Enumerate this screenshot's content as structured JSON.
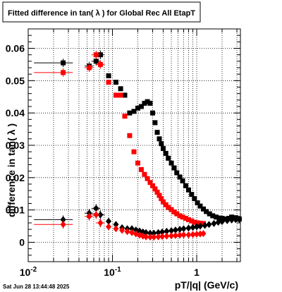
{
  "chart_data": {
    "type": "scatter",
    "title": "Fitted difference in tan( λ ) for Global Rec All EtapT",
    "xlabel": "pT/|q| (GeV/c)",
    "ylabel": "difference in tan( λ )",
    "xscale": "log",
    "xlim": [
      0.01,
      3.3
    ],
    "ylim": [
      -0.006,
      0.066
    ],
    "grid": true,
    "legend": "none",
    "timestamp": "Sat Jun 28 13:44:48 2025",
    "x_ticks": [
      {
        "value": 0.01,
        "base": "10",
        "exp": "-2"
      },
      {
        "value": 0.1,
        "base": "10",
        "exp": "-1"
      },
      {
        "value": 1,
        "base": "1",
        "exp": ""
      }
    ],
    "y_ticks": [
      {
        "value": 0,
        "label": "0"
      },
      {
        "value": 0.01,
        "label": "0.01"
      },
      {
        "value": 0.02,
        "label": "0.02"
      },
      {
        "value": 0.03,
        "label": "0.03"
      },
      {
        "value": 0.04,
        "label": "0.04"
      },
      {
        "value": 0.05,
        "label": "0.05"
      },
      {
        "value": 0.06,
        "label": "0.06"
      }
    ],
    "colors": {
      "black": "#000000",
      "red": "#ff0000"
    },
    "series": [
      {
        "color": "#000000",
        "marker": "square",
        "x": [
          0.026,
          0.053,
          0.064,
          0.072,
          0.09,
          0.11,
          0.125,
          0.14,
          0.16,
          0.18,
          0.2,
          0.22,
          0.24,
          0.26,
          0.28,
          0.3,
          0.32,
          0.34,
          0.36,
          0.38,
          0.4,
          0.43,
          0.46,
          0.5,
          0.54,
          0.58,
          0.63,
          0.68,
          0.74,
          0.8,
          0.87,
          0.94,
          1.02,
          1.1,
          1.2,
          1.3,
          1.42,
          1.55,
          1.7,
          1.85,
          2.0,
          2.2,
          2.4,
          2.6,
          2.9,
          3.2
        ],
        "y": [
          0.0555,
          0.0545,
          0.056,
          0.058,
          0.0515,
          0.0495,
          0.0475,
          0.0455,
          0.04,
          0.0405,
          0.0415,
          0.042,
          0.043,
          0.0435,
          0.043,
          0.04,
          0.037,
          0.034,
          0.032,
          0.0305,
          0.029,
          0.0275,
          0.026,
          0.0245,
          0.023,
          0.0215,
          0.0202,
          0.019,
          0.0175,
          0.0162,
          0.0148,
          0.0135,
          0.0122,
          0.0112,
          0.0103,
          0.0095,
          0.0088,
          0.0082,
          0.0078,
          0.0075,
          0.0074,
          0.0072,
          0.0074,
          0.0078,
          0.0076,
          0.0072
        ]
      },
      {
        "color": "#ff0000",
        "marker": "square",
        "x": [
          0.026,
          0.053,
          0.064,
          0.072,
          0.09,
          0.11,
          0.125,
          0.14,
          0.16,
          0.18,
          0.2,
          0.22,
          0.24,
          0.26,
          0.28,
          0.3,
          0.32,
          0.34,
          0.36,
          0.38,
          0.4,
          0.43,
          0.46,
          0.5,
          0.54,
          0.58,
          0.63,
          0.68,
          0.74,
          0.8,
          0.87,
          0.94,
          1.02,
          1.1,
          1.2
        ],
        "y": [
          0.0525,
          0.054,
          0.058,
          0.055,
          0.0495,
          0.0455,
          0.0455,
          0.039,
          0.033,
          0.028,
          0.0245,
          0.0225,
          0.021,
          0.0197,
          0.0185,
          0.0175,
          0.0165,
          0.0155,
          0.0145,
          0.0135,
          0.0125,
          0.0116,
          0.0108,
          0.0101,
          0.0094,
          0.0088,
          0.0082,
          0.0078,
          0.0074,
          0.007,
          0.0066,
          0.0062,
          0.006,
          0.0059,
          0.0058
        ]
      },
      {
        "color": "#000000",
        "marker": "diamond",
        "x": [
          0.026,
          0.053,
          0.064,
          0.072,
          0.09,
          0.11,
          0.13,
          0.15,
          0.17,
          0.19,
          0.21,
          0.23,
          0.25,
          0.28,
          0.31,
          0.35,
          0.39,
          0.44,
          0.5,
          0.56,
          0.63,
          0.7,
          0.8,
          0.9,
          1.0,
          1.1,
          1.25,
          1.4,
          1.6,
          1.8,
          2.0,
          2.3,
          2.6,
          2.9,
          3.2
        ],
        "y": [
          0.007,
          0.009,
          0.0105,
          0.0085,
          0.0065,
          0.0055,
          0.0045,
          0.0042,
          0.0042,
          0.0038,
          0.0035,
          0.0032,
          0.003,
          0.0028,
          0.0028,
          0.003,
          0.0032,
          0.0034,
          0.0036,
          0.0038,
          0.004,
          0.0042,
          0.0044,
          0.0046,
          0.0048,
          0.005,
          0.0052,
          0.0055,
          0.0058,
          0.0062,
          0.0064,
          0.0067,
          0.0069,
          0.007,
          0.0071
        ]
      },
      {
        "color": "#ff0000",
        "marker": "diamond",
        "x": [
          0.026,
          0.053,
          0.064,
          0.072,
          0.09,
          0.11,
          0.13,
          0.15,
          0.17,
          0.19,
          0.21,
          0.23,
          0.25,
          0.28,
          0.31,
          0.35,
          0.39,
          0.44,
          0.5,
          0.56,
          0.63,
          0.7,
          0.8,
          0.9,
          1.0,
          1.1,
          1.2
        ],
        "y": [
          0.0055,
          0.008,
          0.0085,
          0.006,
          0.0048,
          0.0042,
          0.0037,
          0.0033,
          0.003,
          0.0026,
          0.0022,
          0.0019,
          0.0017,
          0.0016,
          0.0016,
          0.0017,
          0.0018,
          0.0019,
          0.002,
          0.0021,
          0.0022,
          0.0023,
          0.0023,
          0.0024,
          0.0025,
          0.0026,
          0.0027
        ]
      }
    ]
  }
}
